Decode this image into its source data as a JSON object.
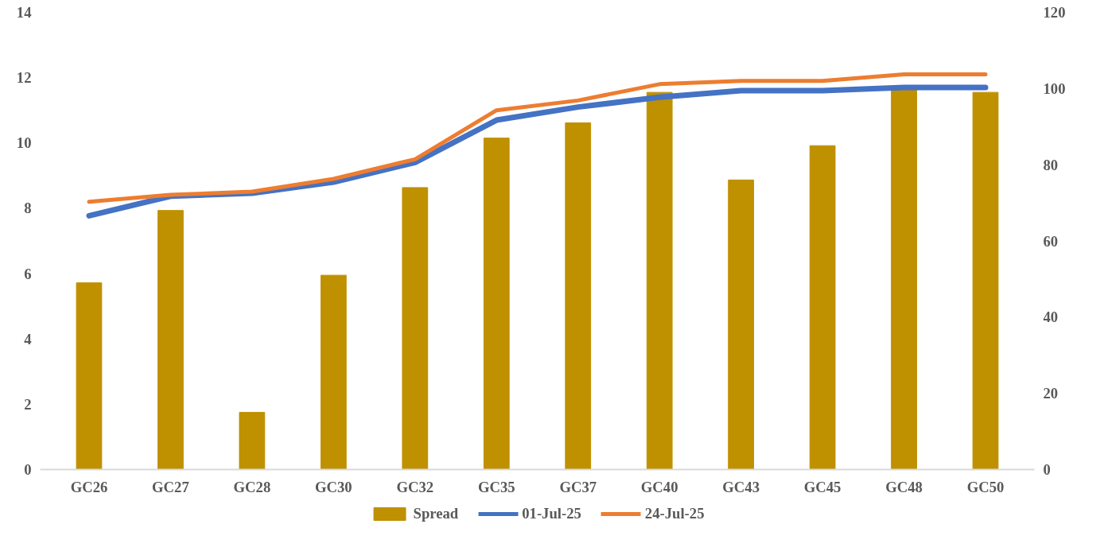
{
  "chart_data": {
    "type": "bar",
    "categories": [
      "GC26",
      "GC27",
      "GC28",
      "GC30",
      "GC32",
      "GC35",
      "GC37",
      "GC40",
      "GC43",
      "GC45",
      "GC48",
      "GC50"
    ],
    "series": [
      {
        "name": "Spread",
        "axis": "y2",
        "color": "#bf9000",
        "values": [
          49,
          68,
          15,
          51,
          74,
          87,
          91,
          99,
          76,
          85,
          100,
          99
        ]
      },
      {
        "name": "01-Jul-25",
        "type": "line",
        "color": "#4472c4",
        "values": [
          7.77,
          8.37,
          8.46,
          8.8,
          9.4,
          10.7,
          11.1,
          11.4,
          11.6,
          11.6,
          11.7,
          11.7
        ]
      },
      {
        "name": "24-Jul-25",
        "type": "line",
        "color": "#ed7d31",
        "values": [
          8.2,
          8.41,
          8.51,
          8.9,
          9.5,
          11.0,
          11.3,
          11.8,
          11.9,
          11.9,
          12.1,
          12.1
        ]
      }
    ],
    "ylim": [
      0,
      14
    ],
    "yticks": [
      0,
      2,
      4,
      6,
      8,
      10,
      12,
      14
    ],
    "y2lim": [
      0,
      120
    ],
    "y2ticks": [
      0,
      20,
      40,
      60,
      80,
      100,
      120
    ],
    "grid": false,
    "legend": "bottom",
    "line_style": "solid",
    "marker": "none"
  }
}
